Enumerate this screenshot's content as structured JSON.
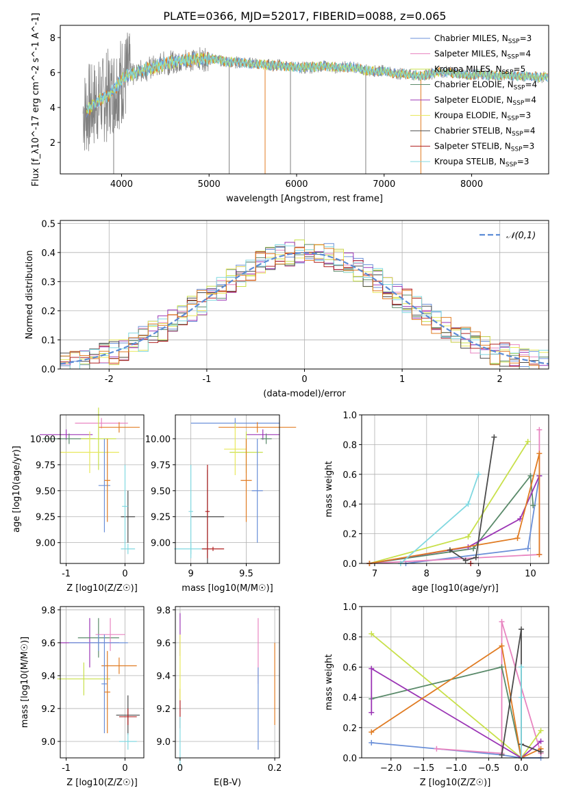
{
  "title": "PLATE=0366, MJD=52017, FIBERID=0088, z=0.065",
  "colors": {
    "chabrier_miles": "#6a8fd8",
    "salpeter_miles": "#e884c0",
    "kroupa_miles": "#c8e04a",
    "chabrier_elodie": "#5a8a6a",
    "salpeter_elodie": "#9b35b5",
    "kroupa_elodie": "#e8e85a",
    "chabrier_stelib": "#4a4a4a",
    "salpeter_stelib": "#b02020",
    "kroupa_stelib": "#80d8e0",
    "orange": "#e07b22",
    "data": "#808080",
    "normal": "#5b8bd6"
  },
  "chart_data": [
    {
      "type": "line",
      "xlabel": "wavelength [Angstrom, rest frame]",
      "ylabel": "Flux [f_λ10^-17 erg cm^-2 s^-1 A^-1]",
      "xlim": [
        3300,
        8880
      ],
      "ylim": [
        0.2,
        8.7
      ],
      "xticks": [
        4000,
        5000,
        6000,
        7000,
        8000
      ],
      "yticks": [
        2,
        4,
        6,
        8
      ],
      "legend": "top-right",
      "legend_entries": [
        {
          "name": "Chabrier MILES",
          "nssp": "3",
          "color": "#6a8fd8"
        },
        {
          "name": "Salpeter MILES",
          "nssp": "4",
          "color": "#e884c0"
        },
        {
          "name": "Kroupa MILES",
          "nssp": "5",
          "color": "#c8e04a"
        },
        {
          "name": "Chabrier ELODIE",
          "nssp": "4",
          "color": "#5a8a6a"
        },
        {
          "name": "Salpeter ELODIE",
          "nssp": "4",
          "color": "#9b35b5"
        },
        {
          "name": "Kroupa ELODIE",
          "nssp": "3",
          "color": "#e8e85a"
        },
        {
          "name": "Chabrier STELIB",
          "nssp": "4",
          "color": "#4a4a4a"
        },
        {
          "name": "Salpeter STELIB",
          "nssp": "3",
          "color": "#b02020"
        },
        {
          "name": "Kroupa STELIB",
          "nssp": "3",
          "color": "#80d8e0"
        }
      ],
      "continuum": [
        [
          3600,
          3.8
        ],
        [
          3700,
          4.3
        ],
        [
          3800,
          4.6
        ],
        [
          3900,
          4.9
        ],
        [
          4000,
          5.6
        ],
        [
          4100,
          5.9
        ],
        [
          4200,
          6.1
        ],
        [
          4300,
          6.2
        ],
        [
          4400,
          6.4
        ],
        [
          4500,
          6.5
        ],
        [
          4600,
          6.6
        ],
        [
          4700,
          6.7
        ],
        [
          4800,
          6.75
        ],
        [
          4900,
          6.75
        ],
        [
          5000,
          6.8
        ],
        [
          5100,
          6.75
        ],
        [
          5200,
          6.6
        ],
        [
          5300,
          6.6
        ],
        [
          5400,
          6.55
        ],
        [
          5500,
          6.5
        ],
        [
          5600,
          6.45
        ],
        [
          5700,
          6.4
        ],
        [
          5800,
          6.4
        ],
        [
          5900,
          6.35
        ],
        [
          6000,
          6.3
        ],
        [
          6100,
          6.3
        ],
        [
          6200,
          6.3
        ],
        [
          6300,
          6.4
        ],
        [
          6400,
          6.3
        ],
        [
          6500,
          6.3
        ],
        [
          6600,
          6.3
        ],
        [
          6700,
          6.25
        ],
        [
          6800,
          6.1
        ],
        [
          6900,
          6.05
        ],
        [
          7000,
          6.1
        ],
        [
          7100,
          5.95
        ],
        [
          7200,
          5.95
        ],
        [
          7300,
          5.9
        ],
        [
          7400,
          5.8
        ],
        [
          7500,
          5.9
        ],
        [
          7600,
          6.0
        ],
        [
          7700,
          6.05
        ],
        [
          7800,
          5.95
        ],
        [
          7900,
          5.9
        ],
        [
          8000,
          5.85
        ],
        [
          8100,
          5.9
        ],
        [
          8200,
          5.85
        ],
        [
          8300,
          5.8
        ],
        [
          8400,
          5.85
        ],
        [
          8500,
          5.8
        ],
        [
          8600,
          5.8
        ],
        [
          8700,
          5.75
        ],
        [
          8800,
          5.75
        ]
      ],
      "spikes": [
        [
          5230,
          0.2
        ],
        [
          5640,
          0.2
        ],
        [
          5930,
          0.2
        ],
        [
          6790,
          0.2
        ],
        [
          7420,
          0.2
        ],
        [
          3910,
          0.2
        ],
        [
          4000,
          3.1
        ],
        [
          5640,
          0.5
        ]
      ]
    },
    {
      "type": "line",
      "xlabel": "(data-model)/error",
      "ylabel": "Normed distribution",
      "xlim": [
        -2.5,
        2.5
      ],
      "ylim": [
        0,
        0.51
      ],
      "xticks": [
        -2,
        -1,
        0,
        1,
        2
      ],
      "yticks": [
        0.0,
        0.1,
        0.2,
        0.3,
        0.4,
        0.5
      ],
      "legend": "top-right",
      "legend_label": "𝒩(0,1)",
      "bins": [
        -2.5,
        2.5,
        50
      ]
    },
    {
      "type": "scatter",
      "xlabel": "Z [log10(Z/Z☉)]",
      "ylabel": "age [log10(age/yr)]",
      "xlim": [
        -1.1,
        0.32
      ],
      "ylim": [
        8.8,
        10.23
      ],
      "xticks": [
        -1,
        0
      ],
      "yticks": [
        9.0,
        9.25,
        9.5,
        9.75,
        10.0
      ]
    },
    {
      "type": "scatter",
      "xlabel": "mass [log10(M/M☉)]",
      "xlim": [
        8.86,
        9.8
      ],
      "ylim": [
        8.8,
        10.23
      ],
      "xticks": [
        9.0,
        9.5
      ],
      "yticks": [
        9.0,
        9.25,
        9.5,
        9.75,
        10.0
      ]
    },
    {
      "type": "line",
      "xlabel": "age [log10(age/yr)]",
      "ylabel": "mass weight",
      "xlim": [
        6.75,
        10.35
      ],
      "ylim": [
        0,
        1.0
      ],
      "xticks": [
        7,
        8,
        9,
        10
      ],
      "yticks": [
        0.0,
        0.2,
        0.4,
        0.6,
        0.8,
        1.0
      ],
      "series": [
        {
          "color": "#6a8fd8",
          "x": [
            7.6,
            9.95,
            10.17
          ],
          "y": [
            0.0,
            0.1,
            0.59
          ]
        },
        {
          "color": "#e884c0",
          "x": [
            6.9,
            10.17,
            10.17
          ],
          "y": [
            0.0,
            0.06,
            0.9
          ]
        },
        {
          "color": "#c8e04a",
          "x": [
            6.9,
            8.8,
            9.95
          ],
          "y": [
            0.0,
            0.18,
            0.82
          ]
        },
        {
          "color": "#5a8a6a",
          "x": [
            6.9,
            8.9,
            10.0,
            10.05
          ],
          "y": [
            0.0,
            0.1,
            0.59,
            0.39
          ]
        },
        {
          "color": "#9b35b5",
          "x": [
            6.9,
            8.8,
            9.8,
            10.17
          ],
          "y": [
            0.0,
            0.11,
            0.3,
            0.59
          ]
        },
        {
          "color": "#e07b22",
          "x": [
            6.9,
            9.75,
            10.17,
            10.17
          ],
          "y": [
            0.0,
            0.17,
            0.74,
            0.06
          ]
        },
        {
          "color": "#4a4a4a",
          "x": [
            8.45,
            8.75,
            8.95,
            9.3
          ],
          "y": [
            0.09,
            0.02,
            0.04,
            0.85
          ]
        },
        {
          "color": "#b02020",
          "x": [
            8.85
          ],
          "y": [
            0.0
          ]
        },
        {
          "color": "#80d8e0",
          "x": [
            7.5,
            8.8,
            9.0
          ],
          "y": [
            0.0,
            0.4,
            0.6
          ]
        }
      ]
    },
    {
      "type": "scatter",
      "xlabel": "Z [log10(Z/Z☉)]",
      "ylabel": "mass [log10(M/M☉)]",
      "xlim": [
        -1.1,
        0.32
      ],
      "ylim": [
        8.9,
        9.82
      ],
      "xticks": [
        -1,
        0
      ],
      "yticks": [
        9.0,
        9.2,
        9.4,
        9.6,
        9.8
      ]
    },
    {
      "type": "scatter",
      "xlabel": "E(B-V)",
      "xlim": [
        -0.01,
        0.21
      ],
      "ylim": [
        8.9,
        9.82
      ],
      "xticks": [
        0.0,
        0.2
      ],
      "yticks": [
        9.0,
        9.2,
        9.4,
        9.6,
        9.8
      ]
    },
    {
      "type": "line",
      "xlabel": "Z [log10(Z/Z☉)]",
      "ylabel": "mass weight",
      "xlim": [
        -2.45,
        0.42
      ],
      "ylim": [
        0,
        1.0
      ],
      "xticks": [
        -2.0,
        -1.5,
        -1.0,
        -0.5,
        0.0
      ],
      "yticks": [
        0.0,
        0.2,
        0.4,
        0.6,
        0.8,
        1.0
      ],
      "series": [
        {
          "color": "#6a8fd8",
          "x": [
            -2.3,
            -0.3,
            0.0,
            0.3
          ],
          "y": [
            0.1,
            0.02,
            0.0,
            0.0
          ]
        },
        {
          "color": "#e884c0",
          "x": [
            -1.3,
            -0.3,
            -0.3,
            0.3
          ],
          "y": [
            0.06,
            0.03,
            0.9,
            0.03
          ]
        },
        {
          "color": "#c8e04a",
          "x": [
            -2.3,
            0.0,
            0.3
          ],
          "y": [
            0.82,
            0.0,
            0.18
          ]
        },
        {
          "color": "#5a8a6a",
          "x": [
            -2.3,
            -0.3,
            0.0,
            0.0
          ],
          "y": [
            0.39,
            0.6,
            0.0,
            0.0
          ]
        },
        {
          "color": "#9b35b5",
          "x": [
            -2.3,
            -2.3,
            0.0,
            0.3
          ],
          "y": [
            0.3,
            0.59,
            0.0,
            0.11
          ]
        },
        {
          "color": "#e07b22",
          "x": [
            -2.3,
            -0.3,
            0.0,
            0.3
          ],
          "y": [
            0.17,
            0.74,
            0.0,
            0.06
          ]
        },
        {
          "color": "#4a4a4a",
          "x": [
            -0.3,
            0.0,
            0.0,
            0.3
          ],
          "y": [
            0.02,
            0.85,
            0.09,
            0.04
          ]
        },
        {
          "color": "#b02020",
          "x": [
            0.0
          ],
          "y": [
            0.0
          ]
        },
        {
          "color": "#80d8e0",
          "x": [
            0.0,
            0.0,
            0.0
          ],
          "y": [
            0.0,
            0.6,
            0.4
          ]
        }
      ]
    }
  ]
}
